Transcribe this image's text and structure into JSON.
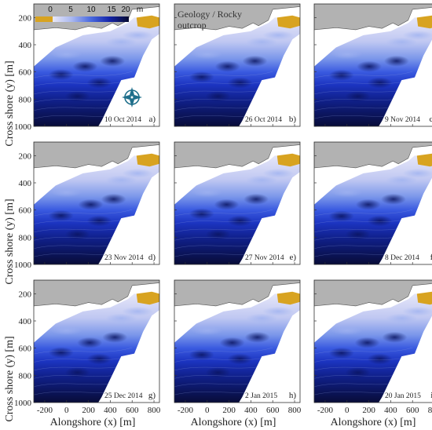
{
  "figure": {
    "ylabel": "Cross shore (y) [m]",
    "xlabel": "Alongshore (x) [m]",
    "x_ticks": [
      "-200",
      "0",
      "200",
      "400",
      "600",
      "800"
    ],
    "y_ticks": [
      "200",
      "400",
      "600",
      "800",
      "1000"
    ],
    "colorbar": {
      "ticks": [
        "0",
        "5",
        "10",
        "15",
        "20"
      ],
      "unit": "m",
      "colors": [
        "#d8a320",
        "#e8e8f8",
        "#aab8f0",
        "#6688e8",
        "#2a4ad8",
        "#0e1a8a",
        "#070a30"
      ]
    },
    "annotation": {
      "line1": "Geology / Rocky",
      "line2": "outcrop"
    },
    "compass_icon": "compass-rose-icon",
    "colors": {
      "land": "#b2b2b2",
      "outcrop": "#d8a320",
      "deep": "#0b1040",
      "shallow": "#e4e4f8"
    }
  },
  "panels": [
    {
      "date": "10 Oct 2014",
      "letter": "a)"
    },
    {
      "date": "26 Oct 2014",
      "letter": "b)"
    },
    {
      "date": "9 Nov 2014",
      "letter": "c)"
    },
    {
      "date": "23 Nov 2014",
      "letter": "d)"
    },
    {
      "date": "27 Nov 2014",
      "letter": "e)"
    },
    {
      "date": "8 Dec 2014",
      "letter": "f)"
    },
    {
      "date": "25 Dec 2014",
      "letter": "g)"
    },
    {
      "date": "2 Jan 2015",
      "letter": "h)"
    },
    {
      "date": "20 Jan 2015",
      "letter": "i)"
    }
  ]
}
